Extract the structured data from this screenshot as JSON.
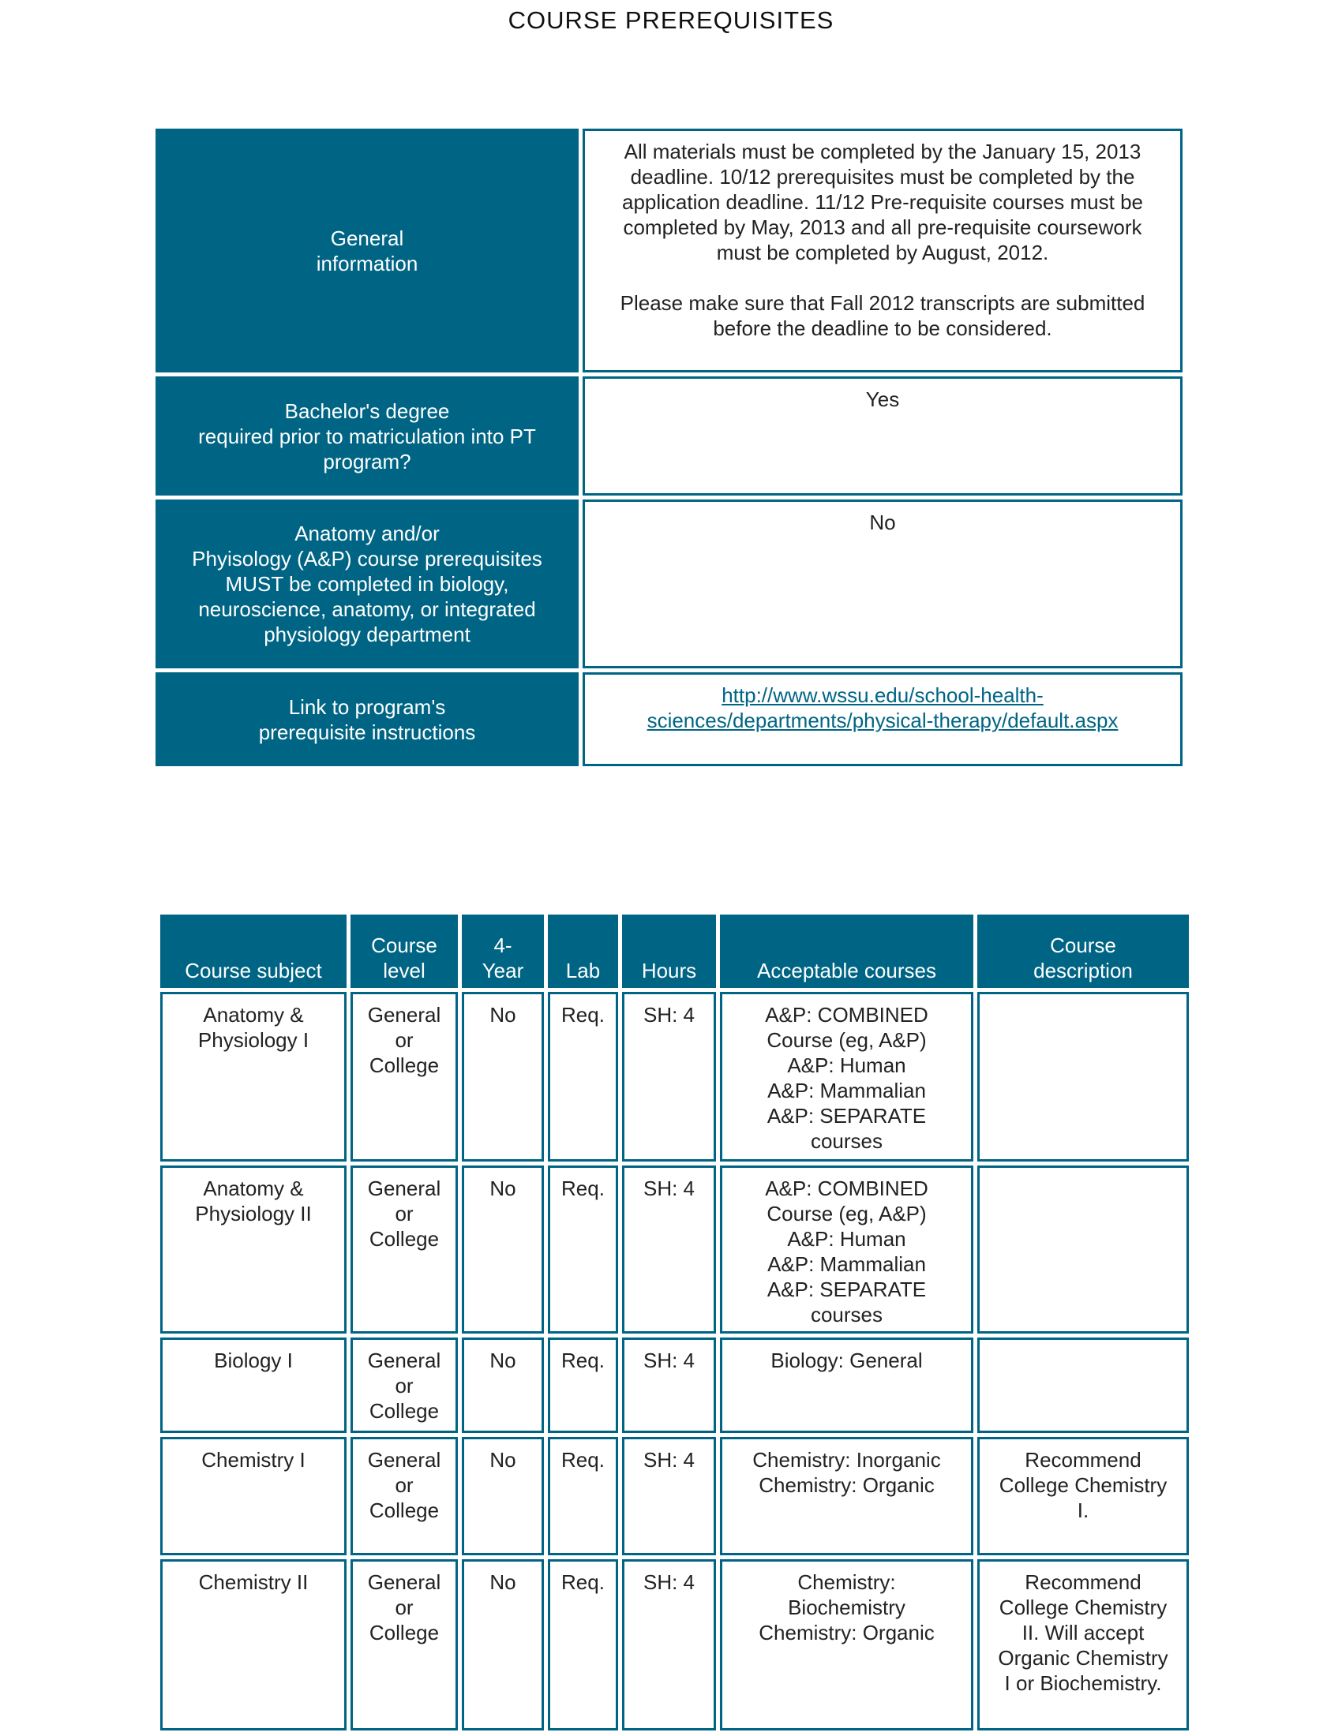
{
  "header": {
    "title": "COURSE PREREQUISITES"
  },
  "info": {
    "rows": [
      {
        "label": [
          "General",
          "information"
        ],
        "value": [
          [
            "All materials must be completed by the January 15, 2013",
            "deadline. 10/12 prerequisites must be completed by the",
            "application deadline. 11/12 Pre-requisite courses must be",
            "completed by May, 2013 and all pre-requisite coursework",
            "must be completed by August, 2012."
          ],
          [
            "Please make sure that Fall 2012 transcripts are submitted",
            "before the deadline to be considered."
          ]
        ]
      },
      {
        "label": [
          "Bachelor's degree",
          "required prior to matriculation into PT",
          "program?"
        ],
        "value": [
          [
            "Yes"
          ]
        ]
      },
      {
        "label": [
          "Anatomy and/or",
          "Phyisology (A&P) course prerequisites",
          "MUST be completed in biology,",
          "neuroscience, anatomy, or integrated",
          "physiology department"
        ],
        "value": [
          [
            "No"
          ]
        ]
      },
      {
        "label": [
          "Link to program's",
          "prerequisite instructions"
        ],
        "link": [
          "http://www.wssu.edu/school-health-",
          "sciences/departments/physical-therapy/default.aspx"
        ]
      }
    ]
  },
  "courses": {
    "header": [
      [
        "Course subject"
      ],
      [
        "Course",
        "level"
      ],
      [
        "4-",
        "Year"
      ],
      [
        "Lab"
      ],
      [
        "Hours"
      ],
      [
        "Acceptable courses"
      ],
      [
        "Course",
        "description"
      ]
    ],
    "rows": [
      [
        [
          "Anatomy &",
          "Physiology I"
        ],
        [
          "General",
          "or",
          "College"
        ],
        [
          "No"
        ],
        [
          "Req."
        ],
        [
          "SH: 4"
        ],
        [
          "A&P: COMBINED",
          "Course (eg, A&P)",
          "A&P: Human",
          "A&P: Mammalian",
          "A&P: SEPARATE",
          "courses"
        ],
        []
      ],
      [
        [
          "Anatomy &",
          "Physiology II"
        ],
        [
          "General",
          "or",
          "College"
        ],
        [
          "No"
        ],
        [
          "Req."
        ],
        [
          "SH: 4"
        ],
        [
          "A&P: COMBINED",
          "Course (eg, A&P)",
          "A&P: Human",
          "A&P: Mammalian",
          "A&P: SEPARATE",
          "courses"
        ],
        []
      ],
      [
        [
          "Biology I"
        ],
        [
          "General",
          "or",
          "College"
        ],
        [
          "No"
        ],
        [
          "Req."
        ],
        [
          "SH: 4"
        ],
        [
          "Biology: General"
        ],
        []
      ],
      [
        [
          "Chemistry I"
        ],
        [
          "General",
          "or",
          "College"
        ],
        [
          "No"
        ],
        [
          "Req."
        ],
        [
          "SH: 4"
        ],
        [
          "Chemistry: Inorganic",
          "Chemistry: Organic"
        ],
        [
          "Recommend",
          "College Chemistry",
          "I."
        ]
      ],
      [
        [
          "Chemistry II"
        ],
        [
          "General",
          "or",
          "College"
        ],
        [
          "No"
        ],
        [
          "Req."
        ],
        [
          "SH: 4"
        ],
        [
          "Chemistry:",
          "Biochemistry",
          "Chemistry: Organic"
        ],
        [
          "Recommend",
          "College Chemistry",
          "II. Will accept",
          "Organic Chemistry",
          "I or Biochemistry."
        ]
      ]
    ]
  }
}
